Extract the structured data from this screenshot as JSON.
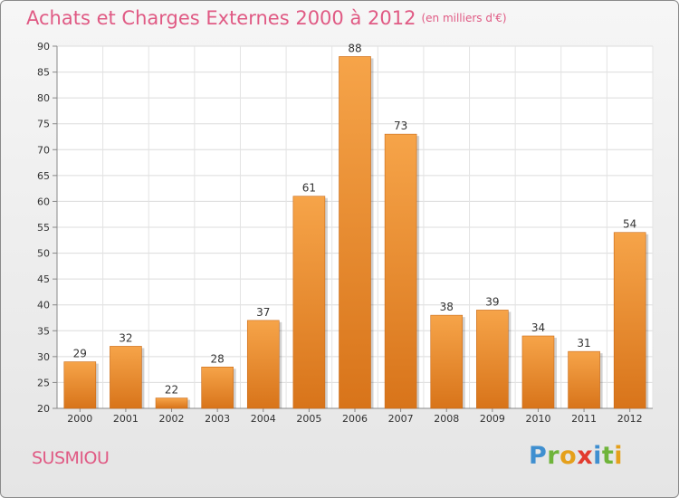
{
  "header": {
    "title": "Achats et Charges Externes 2000 à 2012",
    "subtitle": "(en milliers d'€)"
  },
  "commune": "SUSMIOU",
  "brand": {
    "letters": [
      {
        "ch": "P",
        "color": "#3f8fd0"
      },
      {
        "ch": "r",
        "color": "#6fb43a"
      },
      {
        "ch": "o",
        "color": "#e5a01b"
      },
      {
        "ch": "x",
        "color": "#e23b2f"
      },
      {
        "ch": "i",
        "color": "#3f8fd0"
      },
      {
        "ch": "t",
        "color": "#6fb43a"
      },
      {
        "ch": "i",
        "color": "#e5a01b"
      }
    ]
  },
  "chart_data": {
    "type": "bar",
    "title": "Achats et Charges Externes 2000 à 2012",
    "subtitle": "(en milliers d'€)",
    "categories": [
      "2000",
      "2001",
      "2002",
      "2003",
      "2004",
      "2005",
      "2006",
      "2007",
      "2008",
      "2009",
      "2010",
      "2011",
      "2012"
    ],
    "values": [
      29,
      32,
      22,
      28,
      37,
      61,
      88,
      73,
      38,
      39,
      34,
      31,
      54
    ],
    "ylim": [
      20,
      90
    ],
    "yticks": [
      20,
      25,
      30,
      35,
      40,
      45,
      50,
      55,
      60,
      65,
      70,
      75,
      80,
      85,
      90
    ],
    "grid": true,
    "bar_color": "#f0902e"
  }
}
